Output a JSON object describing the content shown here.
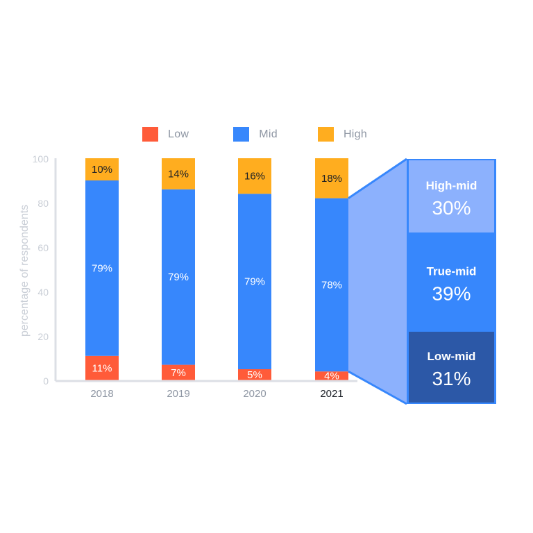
{
  "chart_data": {
    "type": "bar",
    "stacked": true,
    "categories": [
      "2018",
      "2019",
      "2020",
      "2021"
    ],
    "series": [
      {
        "name": "Low",
        "color": "#ff5b39",
        "values": [
          11,
          7,
          5,
          4
        ],
        "labels": [
          "11%",
          "7%",
          "5%",
          "4%"
        ]
      },
      {
        "name": "Mid",
        "color": "#3787fc",
        "values": [
          79,
          79,
          79,
          78
        ],
        "labels": [
          "79%",
          "79%",
          "79%",
          "78%"
        ]
      },
      {
        "name": "High",
        "color": "#ffad1f",
        "values": [
          10,
          14,
          16,
          18
        ],
        "labels": [
          "10%",
          "14%",
          "16%",
          "18%"
        ]
      }
    ],
    "ylabel": "percentage of respondents",
    "ylim": [
      0,
      100
    ],
    "yticks": [
      0,
      20,
      40,
      60,
      80,
      100
    ],
    "highlighted_category": "2021",
    "legend_position": "top",
    "grid": false,
    "breakdown": {
      "of_series": "Mid",
      "category": "2021",
      "segments": [
        {
          "name": "High-mid",
          "value": 30,
          "label": "30%",
          "color": "#8cb1fd"
        },
        {
          "name": "True-mid",
          "value": 39,
          "label": "39%",
          "color": "#3787fc"
        },
        {
          "name": "Low-mid",
          "value": 31,
          "label": "31%",
          "color": "#2c58a7"
        }
      ]
    }
  },
  "colors": {
    "axis": "#dcdfe5",
    "tick": "#c9ced6",
    "category_label": "#8e96a3",
    "category_highlight": "#1b1f26",
    "dark_label": "#1b1f26",
    "light_label": "#ffffff",
    "connector_fill": "#8cb1fd",
    "breakdown_border": "#3787fc"
  }
}
